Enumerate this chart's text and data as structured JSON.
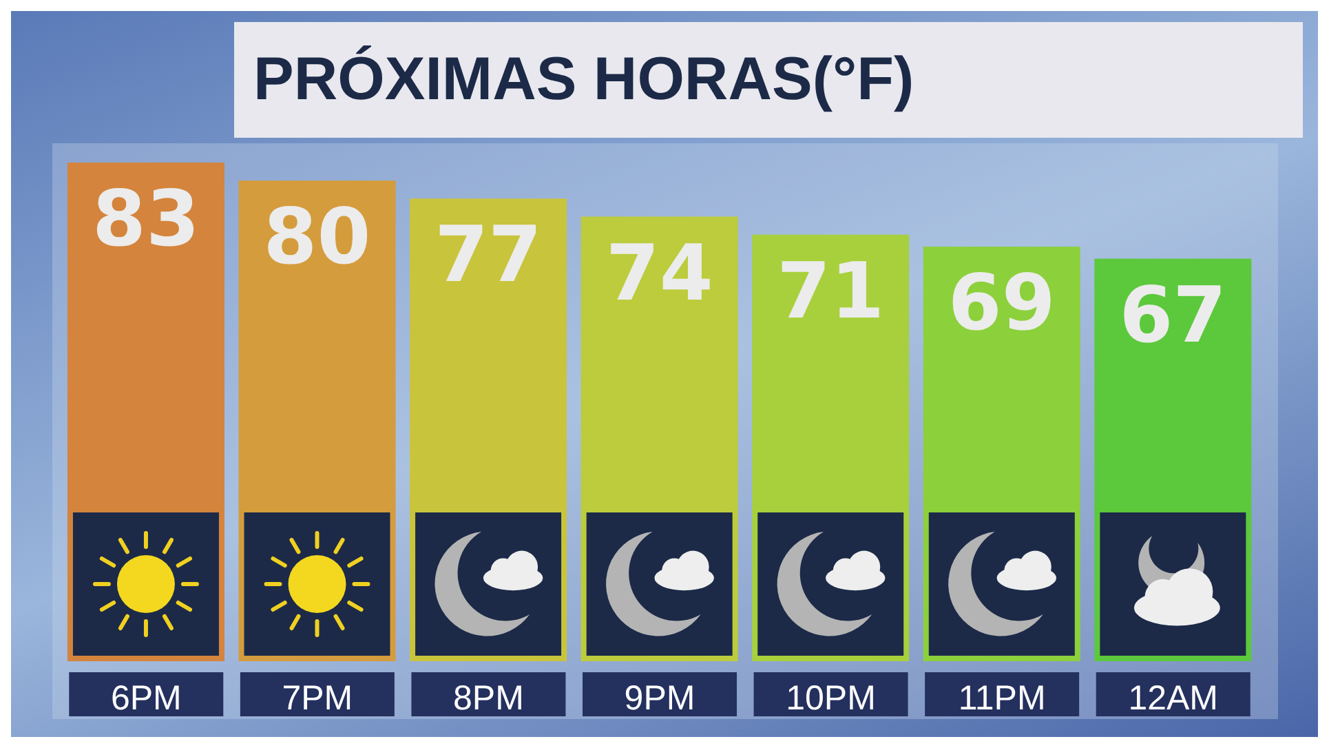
{
  "chart_data": {
    "type": "bar",
    "title": "PRÓXIMAS HORAS(°F)",
    "categories": [
      "6PM",
      "7PM",
      "8PM",
      "9PM",
      "10PM",
      "11PM",
      "12AM"
    ],
    "values": [
      83,
      80,
      77,
      74,
      71,
      69,
      67
    ],
    "colors": [
      "#d4843c",
      "#d49c3c",
      "#c8c43c",
      "#bccc3c",
      "#a8d03c",
      "#8cd03c",
      "#5cc83c"
    ],
    "data_labels": true
  }
}
